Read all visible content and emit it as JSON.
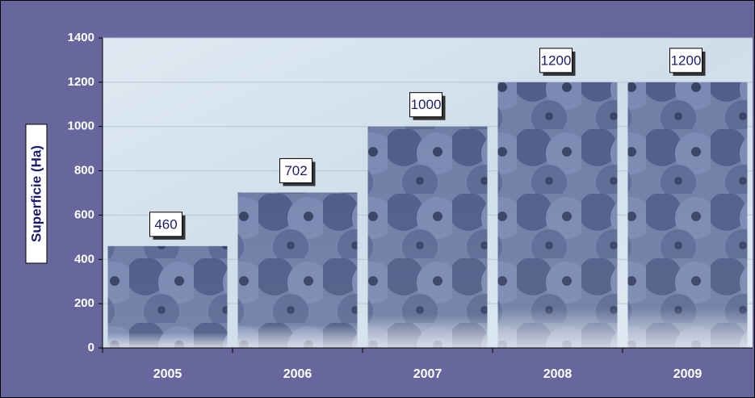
{
  "chart_data": {
    "type": "bar",
    "y_label": "Superficie (Ha)",
    "categories": [
      "2005",
      "2006",
      "2007",
      "2008",
      "2009"
    ],
    "values": [
      460,
      702,
      1000,
      1200,
      1200
    ],
    "ylim": [
      0,
      1400
    ],
    "yticks": [
      0,
      200,
      400,
      600,
      800,
      1000,
      1200,
      1400
    ],
    "grid": true,
    "color": "#5a6a94"
  }
}
